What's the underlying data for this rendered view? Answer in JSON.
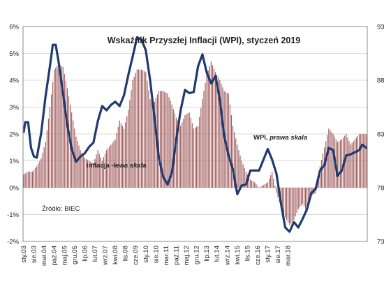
{
  "chart_data": {
    "type": "bar+line",
    "title": "Wskaźnik Przyszłej Inflacji (WPI), styczeń 2019",
    "source": "Źródło: BIEC",
    "colors": {
      "bars": "#a05a5a",
      "line": "#1f3a6e",
      "grid": "#d9d9d9",
      "frame": "#888888"
    },
    "grid": true,
    "x_tick_labels": [
      "sty.03",
      "sie.03",
      "mar.04",
      "paź.04",
      "maj.05",
      "gru.05",
      "lip.06",
      "lut.07",
      "wrz.07",
      "kwi.08",
      "lis.08",
      "cze.09",
      "sty.10",
      "sie.10",
      "mar.11",
      "paź.11",
      "maj.12",
      "gru.12",
      "lip.13",
      "lut.14",
      "wrz.14",
      "kwi.15",
      "lis.15",
      "cze.16",
      "sty.17",
      "sie.17",
      "mar.18"
    ],
    "left_axis": {
      "ylim": [
        -2,
        6
      ],
      "ticks": [
        "-2%",
        "-1%",
        "0%",
        "1%",
        "2%",
        "3%",
        "4%",
        "5%",
        "6%"
      ]
    },
    "right_axis": {
      "ylim": [
        73,
        93
      ],
      "ticks": [
        "73",
        "78",
        "83",
        "88",
        "93"
      ]
    },
    "series": [
      {
        "name": "inflacja",
        "label": "inflacja -",
        "label_suffix": "lewa skala",
        "kind": "bar",
        "axis": "left",
        "unit": "%",
        "anchors": [
          [
            0,
            0.5
          ],
          [
            3,
            0.6
          ],
          [
            6,
            0.6
          ],
          [
            9,
            0.8
          ],
          [
            12,
            1.1
          ],
          [
            15,
            1.7
          ],
          [
            18,
            3.0
          ],
          [
            21,
            4.4
          ],
          [
            24,
            4.6
          ],
          [
            27,
            4.5
          ],
          [
            30,
            3.7
          ],
          [
            33,
            2.8
          ],
          [
            36,
            1.9
          ],
          [
            39,
            1.4
          ],
          [
            42,
            1.1
          ],
          [
            45,
            1.0
          ],
          [
            48,
            0.9
          ],
          [
            51,
            1.4
          ],
          [
            54,
            1.0
          ],
          [
            57,
            1.4
          ],
          [
            60,
            1.6
          ],
          [
            63,
            1.8
          ],
          [
            66,
            2.5
          ],
          [
            69,
            2.2
          ],
          [
            72,
            2.9
          ],
          [
            75,
            4.0
          ],
          [
            78,
            4.4
          ],
          [
            81,
            4.4
          ],
          [
            84,
            4.3
          ],
          [
            87,
            3.3
          ],
          [
            90,
            3.2
          ],
          [
            93,
            3.6
          ],
          [
            96,
            3.6
          ],
          [
            99,
            3.5
          ],
          [
            102,
            3.1
          ],
          [
            105,
            2.6
          ],
          [
            108,
            2.3
          ],
          [
            111,
            2.7
          ],
          [
            114,
            2.8
          ],
          [
            117,
            2.2
          ],
          [
            120,
            2.3
          ],
          [
            123,
            3.3
          ],
          [
            126,
            4.2
          ],
          [
            129,
            4.7
          ],
          [
            132,
            4.3
          ],
          [
            135,
            4.0
          ],
          [
            138,
            3.6
          ],
          [
            141,
            3.5
          ],
          [
            144,
            2.3
          ],
          [
            147,
            1.6
          ],
          [
            150,
            1.0
          ],
          [
            153,
            0.6
          ],
          [
            156,
            0.3
          ],
          [
            159,
            0.2
          ],
          [
            162,
            0.0
          ],
          [
            165,
            0.1
          ],
          [
            168,
            0.2
          ],
          [
            171,
            0.6
          ],
          [
            174,
            -0.2
          ],
          [
            177,
            -0.7
          ],
          [
            180,
            -1.1
          ],
          [
            183,
            -1.4
          ],
          [
            186,
            -1.2
          ],
          [
            189,
            -0.8
          ],
          [
            192,
            -0.6
          ],
          [
            195,
            -0.9
          ],
          [
            198,
            -0.3
          ],
          [
            201,
            -0.2
          ],
          [
            204,
            0.8
          ],
          [
            207,
            1.5
          ],
          [
            210,
            2.2
          ],
          [
            213,
            2.0
          ],
          [
            216,
            1.7
          ],
          [
            219,
            1.8
          ],
          [
            222,
            2.0
          ],
          [
            225,
            1.6
          ],
          [
            228,
            1.8
          ],
          [
            231,
            2.0
          ],
          [
            236,
            2.0
          ]
        ]
      },
      {
        "name": "WPI",
        "label": "WPI, ",
        "label_suffix": "prawa skala",
        "kind": "line",
        "axis": "right",
        "anchors": [
          [
            0,
            83.2
          ],
          [
            1,
            84.1
          ],
          [
            3,
            84.1
          ],
          [
            5,
            81.7
          ],
          [
            7,
            80.9
          ],
          [
            9,
            80.8
          ],
          [
            12,
            83.1
          ],
          [
            15,
            86.5
          ],
          [
            18,
            89.3
          ],
          [
            20,
            91.3
          ],
          [
            22,
            91.3
          ],
          [
            24,
            89.7
          ],
          [
            27,
            86.8
          ],
          [
            30,
            83.8
          ],
          [
            33,
            81.6
          ],
          [
            36,
            80.4
          ],
          [
            39,
            80.9
          ],
          [
            42,
            81.2
          ],
          [
            45,
            81.8
          ],
          [
            48,
            82.2
          ],
          [
            51,
            84.2
          ],
          [
            54,
            85.6
          ],
          [
            57,
            85.2
          ],
          [
            60,
            85.7
          ],
          [
            63,
            86.0
          ],
          [
            66,
            85.6
          ],
          [
            69,
            86.6
          ],
          [
            72,
            88.5
          ],
          [
            75,
            90.2
          ],
          [
            78,
            92.0
          ],
          [
            81,
            91.8
          ],
          [
            84,
            90.8
          ],
          [
            87,
            88.0
          ],
          [
            90,
            84.5
          ],
          [
            93,
            80.8
          ],
          [
            96,
            79.0
          ],
          [
            99,
            78.3
          ],
          [
            102,
            79.4
          ],
          [
            105,
            82.5
          ],
          [
            108,
            85.2
          ],
          [
            111,
            87.1
          ],
          [
            114,
            86.8
          ],
          [
            117,
            86.9
          ],
          [
            120,
            89.3
          ],
          [
            123,
            90.4
          ],
          [
            126,
            88.7
          ],
          [
            129,
            87.7
          ],
          [
            132,
            88.4
          ],
          [
            135,
            86.2
          ],
          [
            138,
            82.8
          ],
          [
            141,
            81.0
          ],
          [
            144,
            79.7
          ],
          [
            147,
            77.4
          ],
          [
            150,
            78.2
          ],
          [
            153,
            78.3
          ],
          [
            156,
            79.6
          ],
          [
            159,
            79.6
          ],
          [
            162,
            79.6
          ],
          [
            165,
            80.6
          ],
          [
            168,
            81.6
          ],
          [
            171,
            80.6
          ],
          [
            174,
            79.3
          ],
          [
            177,
            76.6
          ],
          [
            180,
            74.3
          ],
          [
            183,
            73.9
          ],
          [
            186,
            74.8
          ],
          [
            189,
            74.3
          ],
          [
            192,
            75.1
          ],
          [
            195,
            76.0
          ],
          [
            198,
            77.5
          ],
          [
            201,
            77.9
          ],
          [
            204,
            79.6
          ],
          [
            207,
            80.1
          ],
          [
            210,
            81.7
          ],
          [
            213,
            81.5
          ],
          [
            216,
            79.1
          ],
          [
            219,
            79.6
          ],
          [
            222,
            81.0
          ],
          [
            225,
            81.1
          ],
          [
            228,
            81.3
          ],
          [
            231,
            81.5
          ],
          [
            233,
            82.0
          ],
          [
            236,
            81.7
          ]
        ]
      }
    ]
  }
}
